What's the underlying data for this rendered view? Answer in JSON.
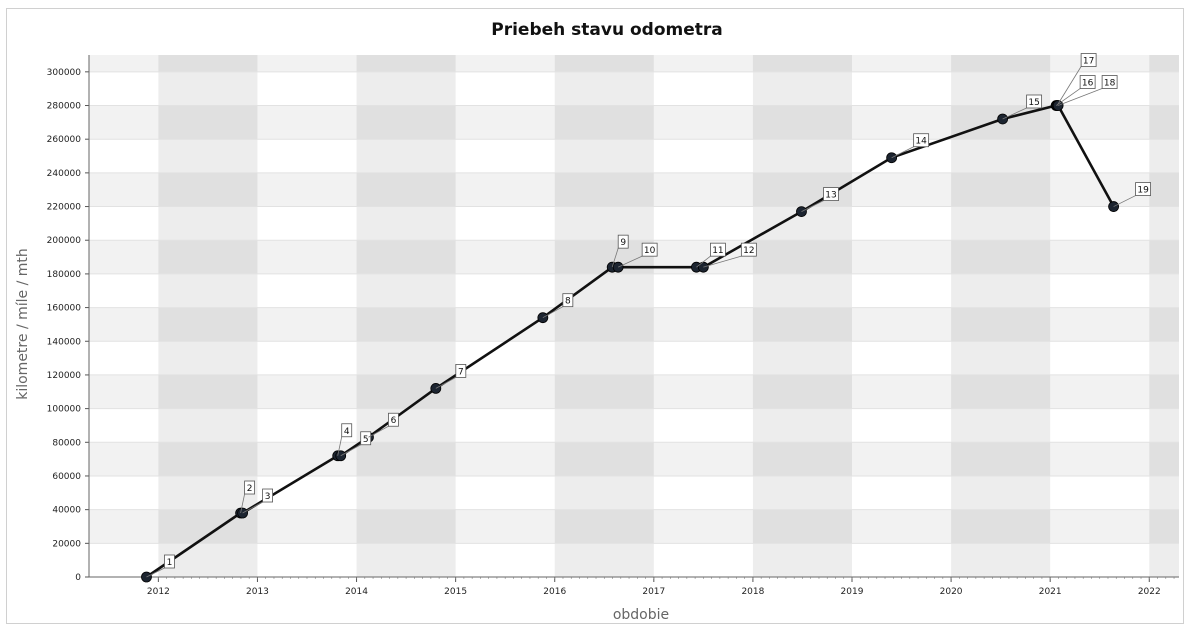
{
  "chart_data": {
    "type": "line",
    "title": "Priebeh stavu odometra",
    "xlabel": "obdobie",
    "ylabel": "kilometre / míle / mth",
    "xlim": [
      2011.3,
      2022.3
    ],
    "ylim": [
      0,
      310000
    ],
    "x_ticks": [
      "2012",
      "2013",
      "2014",
      "2015",
      "2016",
      "2017",
      "2018",
      "2019",
      "2020",
      "2021",
      "2022"
    ],
    "y_ticks": [
      "0",
      "20000",
      "40000",
      "60000",
      "80000",
      "100000",
      "120000",
      "140000",
      "160000",
      "180000",
      "200000",
      "220000",
      "240000",
      "260000",
      "280000",
      "300000"
    ],
    "grid": true,
    "legend": "none",
    "series": [
      {
        "color": "#111111",
        "points": [
          {
            "label": "1",
            "x": 2011.88,
            "y": 0
          },
          {
            "label": "2",
            "x": 2012.83,
            "y": 38000
          },
          {
            "label": "3",
            "x": 2012.85,
            "y": 38000
          },
          {
            "label": "4",
            "x": 2013.81,
            "y": 72000
          },
          {
            "label": "5",
            "x": 2013.84,
            "y": 72000
          },
          {
            "label": "6",
            "x": 2014.12,
            "y": 83000
          },
          {
            "label": "7",
            "x": 2014.8,
            "y": 112000
          },
          {
            "label": "8",
            "x": 2015.88,
            "y": 154000
          },
          {
            "label": "9",
            "x": 2016.58,
            "y": 184000
          },
          {
            "label": "10",
            "x": 2016.64,
            "y": 184000
          },
          {
            "label": "11",
            "x": 2017.43,
            "y": 184000
          },
          {
            "label": "12",
            "x": 2017.5,
            "y": 184000
          },
          {
            "label": "13",
            "x": 2018.49,
            "y": 217000
          },
          {
            "label": "14",
            "x": 2019.4,
            "y": 249000
          },
          {
            "label": "15",
            "x": 2020.52,
            "y": 272000
          },
          {
            "label": "16",
            "x": 2021.06,
            "y": 280000
          },
          {
            "label": "17",
            "x": 2021.07,
            "y": 280000
          },
          {
            "label": "18",
            "x": 2021.08,
            "y": 280000
          },
          {
            "label": "19",
            "x": 2021.64,
            "y": 220000
          }
        ]
      }
    ]
  }
}
